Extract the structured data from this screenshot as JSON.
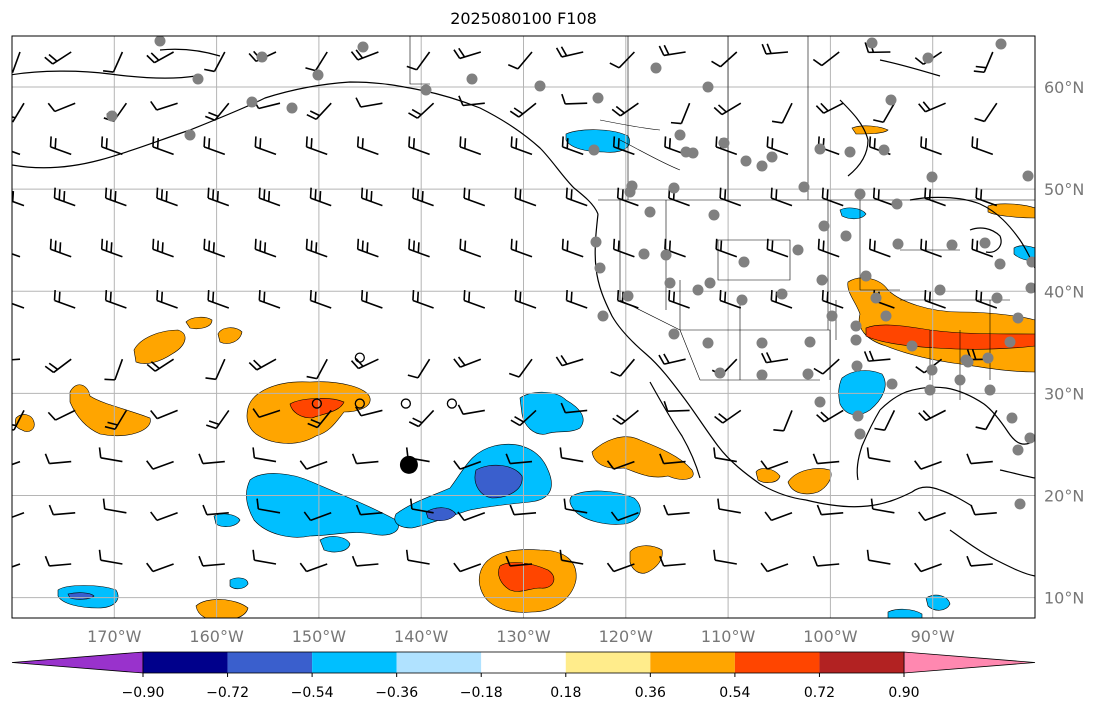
{
  "title": "2025080100 F108",
  "map": {
    "lon_range": [
      -180,
      -80
    ],
    "lat_range": [
      8,
      65
    ],
    "lon_ticks": [
      {
        "value": -170,
        "label": "170°W"
      },
      {
        "value": -160,
        "label": "160°W"
      },
      {
        "value": -150,
        "label": "150°W"
      },
      {
        "value": -140,
        "label": "140°W"
      },
      {
        "value": -130,
        "label": "130°W"
      },
      {
        "value": -120,
        "label": "120°W"
      },
      {
        "value": -110,
        "label": "110°W"
      },
      {
        "value": -100,
        "label": "100°W"
      },
      {
        "value": -90,
        "label": "90°W"
      }
    ],
    "lat_ticks": [
      {
        "value": 60,
        "label": "60°N"
      },
      {
        "value": 50,
        "label": "50°N"
      },
      {
        "value": 40,
        "label": "40°N"
      },
      {
        "value": 30,
        "label": "30°N"
      },
      {
        "value": 20,
        "label": "20°N"
      },
      {
        "value": 10,
        "label": "10°N"
      }
    ],
    "grid": true,
    "highlight_marker": {
      "lon": -141.2,
      "lat": 23.0
    },
    "open_circles": [
      {
        "lon": -146,
        "lat": 33.5
      },
      {
        "lon": -146,
        "lat": 29.0
      },
      {
        "lon": -150.2,
        "lat": 29.0
      },
      {
        "lon": -141.5,
        "lat": 29.0
      },
      {
        "lon": -137,
        "lat": 29.0
      }
    ]
  },
  "colorbar": {
    "levels": [
      -0.9,
      -0.72,
      -0.54,
      -0.36,
      -0.18,
      0.18,
      0.36,
      0.54,
      0.72,
      0.9
    ],
    "tick_labels": [
      "−0.90",
      "−0.72",
      "−0.54",
      "−0.36",
      "−0.18",
      "0.18",
      "0.36",
      "0.54",
      "0.72",
      "0.90"
    ],
    "colors": [
      "#9932cc",
      "#00008b",
      "#3a5fcd",
      "#00bfff",
      "#b0e2ff",
      "#ffffff",
      "#ffec8b",
      "#ffa500",
      "#ff4500",
      "#b22222",
      "#ff88b0"
    ],
    "extend": "both"
  },
  "stations_color": "#808080",
  "contour_colors": {
    "neg_strong": "#3a5fcd",
    "neg": "#00bfff",
    "pos": "#ffa500",
    "pos_strong": "#ff4500",
    "pos_max": "#b22222"
  }
}
